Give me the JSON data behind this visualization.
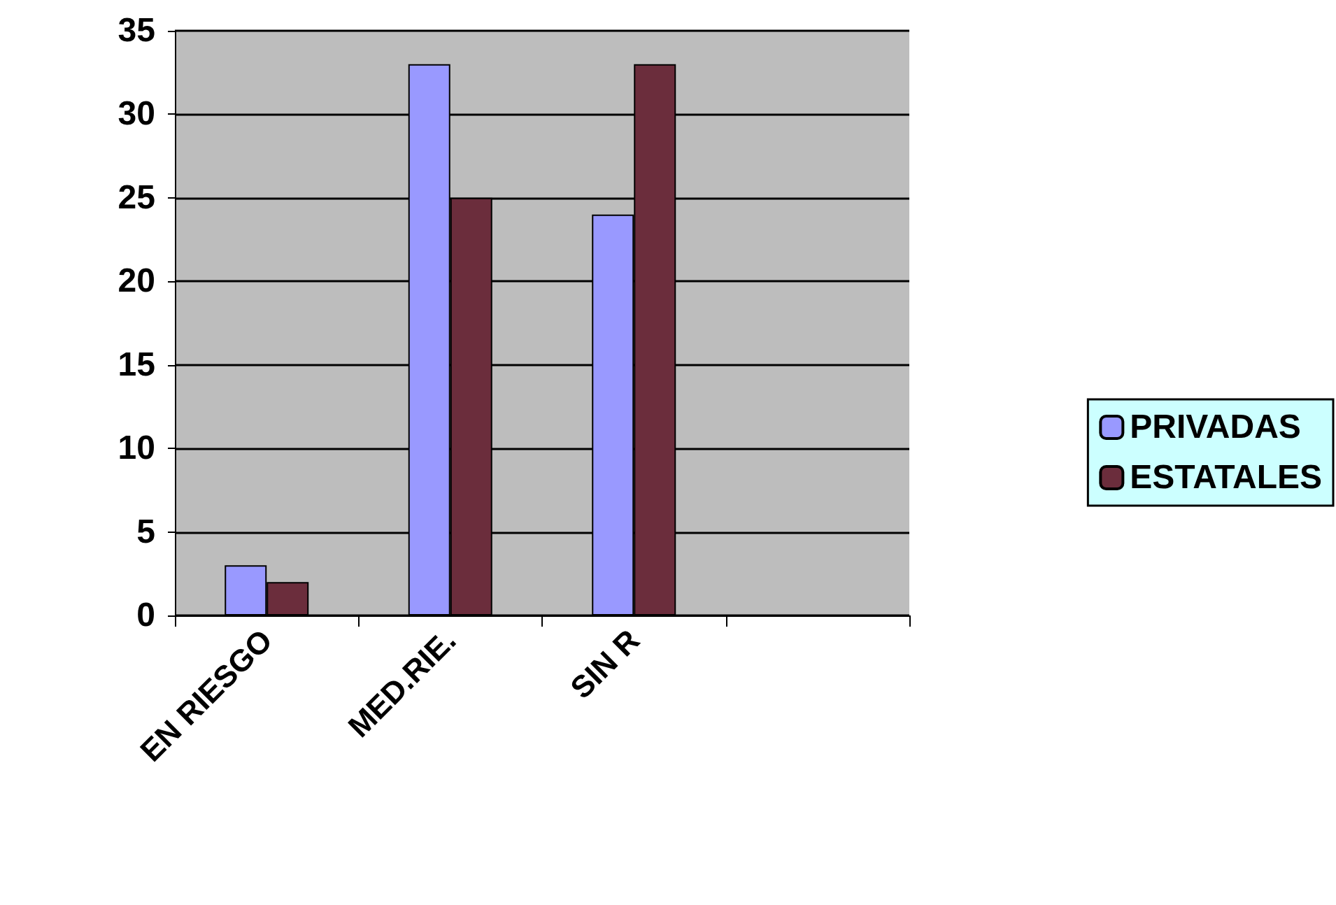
{
  "chart_data": {
    "type": "bar",
    "categories": [
      "EN RIESGO",
      "MED.RIE.",
      "SIN R",
      null
    ],
    "series": [
      {
        "name": "PRIVADAS",
        "color": "#9999ff",
        "values": [
          3,
          33,
          24,
          null
        ]
      },
      {
        "name": "ESTATALES",
        "color": "#6b2d3c",
        "values": [
          2,
          25,
          33,
          null
        ]
      }
    ],
    "ylim": [
      0,
      35
    ],
    "yticks": [
      0,
      5,
      10,
      15,
      20,
      25,
      30,
      35
    ],
    "grid": "y",
    "legend": "right"
  }
}
